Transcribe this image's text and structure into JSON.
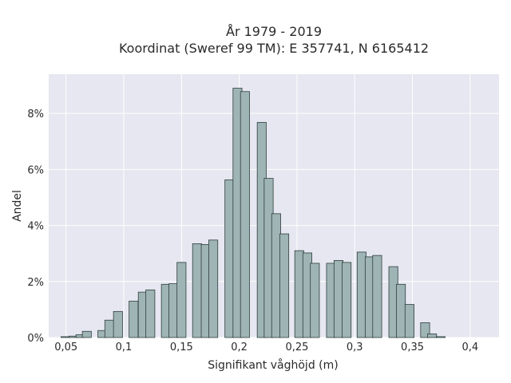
{
  "chart_data": {
    "type": "bar",
    "title_line1": "År 1979 - 2019",
    "title_line2": "Koordinat (Sweref 99 TM): E 357741, N 6165412",
    "xlabel": "Signifikant våghöjd (m)",
    "ylabel": "Andel",
    "xlim": [
      0.035,
      0.425
    ],
    "ylim": [
      0,
      0.094
    ],
    "grid": true,
    "x_ticks": [
      {
        "value": 0.05,
        "label": "0,05"
      },
      {
        "value": 0.1,
        "label": "0,1"
      },
      {
        "value": 0.15,
        "label": "0,15"
      },
      {
        "value": 0.2,
        "label": "0,2"
      },
      {
        "value": 0.25,
        "label": "0,25"
      },
      {
        "value": 0.3,
        "label": "0,3"
      },
      {
        "value": 0.35,
        "label": "0,35"
      },
      {
        "value": 0.4,
        "label": "0,4"
      }
    ],
    "y_ticks": [
      {
        "value": 0.0,
        "label": "0%"
      },
      {
        "value": 0.02,
        "label": "2%"
      },
      {
        "value": 0.04,
        "label": "4%"
      },
      {
        "value": 0.06,
        "label": "6%"
      },
      {
        "value": 0.08,
        "label": "8%"
      }
    ],
    "bar_width": 0.0078,
    "bars": [
      {
        "x": 0.0495,
        "y": 0.0003
      },
      {
        "x": 0.0565,
        "y": 0.0005
      },
      {
        "x": 0.0625,
        "y": 0.001
      },
      {
        "x": 0.068,
        "y": 0.0022
      },
      {
        "x": 0.0815,
        "y": 0.0025
      },
      {
        "x": 0.0875,
        "y": 0.0062
      },
      {
        "x": 0.095,
        "y": 0.0093
      },
      {
        "x": 0.1085,
        "y": 0.013
      },
      {
        "x": 0.1165,
        "y": 0.0162
      },
      {
        "x": 0.123,
        "y": 0.017
      },
      {
        "x": 0.1365,
        "y": 0.019
      },
      {
        "x": 0.143,
        "y": 0.0192
      },
      {
        "x": 0.15,
        "y": 0.0268
      },
      {
        "x": 0.1635,
        "y": 0.0335
      },
      {
        "x": 0.171,
        "y": 0.0332
      },
      {
        "x": 0.1775,
        "y": 0.0348
      },
      {
        "x": 0.1915,
        "y": 0.0563
      },
      {
        "x": 0.1985,
        "y": 0.089
      },
      {
        "x": 0.205,
        "y": 0.0878
      },
      {
        "x": 0.2195,
        "y": 0.0768
      },
      {
        "x": 0.2255,
        "y": 0.0568
      },
      {
        "x": 0.232,
        "y": 0.0442
      },
      {
        "x": 0.239,
        "y": 0.037
      },
      {
        "x": 0.252,
        "y": 0.031
      },
      {
        "x": 0.259,
        "y": 0.0302
      },
      {
        "x": 0.2655,
        "y": 0.0265
      },
      {
        "x": 0.2795,
        "y": 0.0265
      },
      {
        "x": 0.286,
        "y": 0.0275
      },
      {
        "x": 0.293,
        "y": 0.0268
      },
      {
        "x": 0.306,
        "y": 0.0305
      },
      {
        "x": 0.313,
        "y": 0.0288
      },
      {
        "x": 0.3195,
        "y": 0.0293
      },
      {
        "x": 0.3335,
        "y": 0.0253
      },
      {
        "x": 0.34,
        "y": 0.019
      },
      {
        "x": 0.3475,
        "y": 0.0118
      },
      {
        "x": 0.361,
        "y": 0.0053
      },
      {
        "x": 0.367,
        "y": 0.0013
      },
      {
        "x": 0.3745,
        "y": 0.0003
      }
    ],
    "colors": {
      "bar_fill": "#9fb4b4",
      "bar_stroke": "#2f3e3e",
      "plot_background": "#e6e7f0",
      "grid": "#ffffff"
    }
  }
}
